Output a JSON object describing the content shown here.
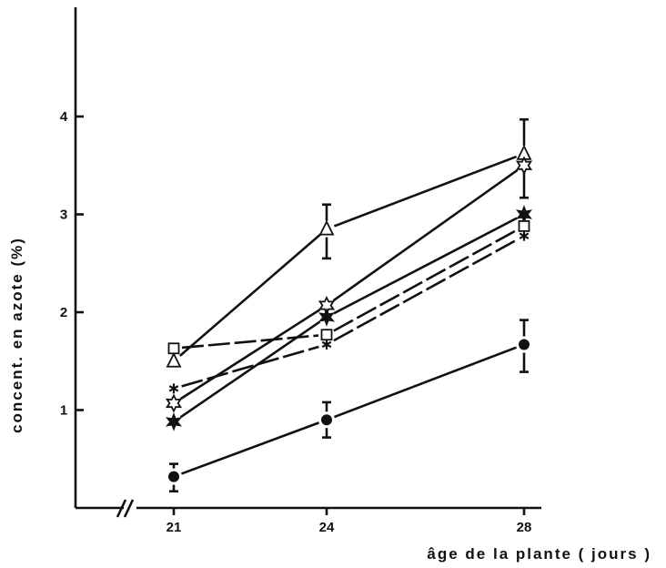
{
  "chart_data": {
    "type": "line",
    "xlabel": "âge de la plante ( jours )",
    "ylabel": "concent.   en   azote   (%)",
    "x": [
      21,
      24,
      28
    ],
    "x_tick_labels": [
      "21",
      "24",
      "28"
    ],
    "y_ticks": [
      1,
      2,
      3,
      4
    ],
    "y_tick_labels": [
      "1",
      "2",
      "3",
      "4"
    ],
    "ylim": [
      0,
      5.0
    ],
    "axis_break": "x",
    "grid": false,
    "series": [
      {
        "marker": "triangle-open",
        "style": "solid",
        "values": [
          1.5,
          2.85,
          3.62
        ],
        "errors": [
          null,
          {
            "up": 0.25,
            "down": 0.3
          },
          {
            "up": 0.35,
            "down": 0.45
          }
        ]
      },
      {
        "marker": "star6-open",
        "style": "solid",
        "values": [
          1.07,
          2.07,
          3.5
        ],
        "errors": [
          null,
          null,
          null
        ]
      },
      {
        "marker": "star6-filled",
        "style": "solid",
        "values": [
          0.88,
          1.95,
          3.0
        ],
        "errors": [
          null,
          null,
          null
        ]
      },
      {
        "marker": "square-open",
        "style": "dashed",
        "values": [
          1.63,
          1.77,
          2.88
        ],
        "errors": [
          null,
          null,
          null
        ]
      },
      {
        "marker": "asterisk",
        "style": "dashed",
        "values": [
          1.22,
          1.67,
          2.78
        ],
        "errors": [
          null,
          null,
          null
        ]
      },
      {
        "marker": "circle-filled",
        "style": "solid",
        "values": [
          0.32,
          0.9,
          1.67
        ],
        "errors": [
          {
            "up": 0.13,
            "down": 0.15
          },
          {
            "up": 0.18,
            "down": 0.18
          },
          {
            "up": 0.25,
            "down": 0.28
          }
        ]
      }
    ]
  }
}
